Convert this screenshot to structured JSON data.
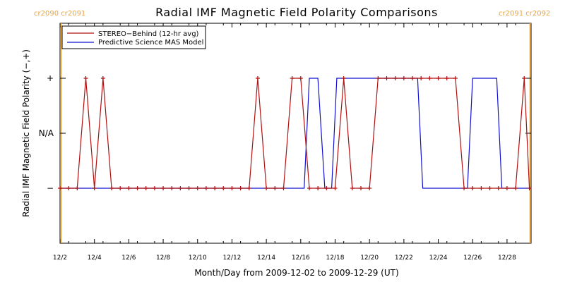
{
  "chart_data": {
    "type": "line",
    "title": "Radial IMF Magnetic Field Polarity Comparisons",
    "xlabel": "Month/Day from 2009-12-02 to 2009-12-29 (UT)",
    "ylabel": "Radial IMF Magnetic Field Polarity (−,+)",
    "xlim": [
      0,
      27.4
    ],
    "ylim": [
      -1.0,
      1.0
    ],
    "x_ticks": [
      {
        "x": 0,
        "label": "12/2"
      },
      {
        "x": 2,
        "label": "12/4"
      },
      {
        "x": 4,
        "label": "12/6"
      },
      {
        "x": 6,
        "label": "12/8"
      },
      {
        "x": 8,
        "label": "12/10"
      },
      {
        "x": 10,
        "label": "12/12"
      },
      {
        "x": 12,
        "label": "12/14"
      },
      {
        "x": 14,
        "label": "12/16"
      },
      {
        "x": 16,
        "label": "12/18"
      },
      {
        "x": 18,
        "label": "12/20"
      },
      {
        "x": 20,
        "label": "12/22"
      },
      {
        "x": 22,
        "label": "12/24"
      },
      {
        "x": 24,
        "label": "12/26"
      },
      {
        "x": 26,
        "label": "12/28"
      }
    ],
    "y_ticks": [
      {
        "y": 0.5,
        "label": "+"
      },
      {
        "y": 0.0,
        "label": "N/A"
      },
      {
        "y": -0.5,
        "label": "−"
      }
    ],
    "carrington_markers": [
      {
        "x": 0.05,
        "left_label": "cr2090",
        "right_label": "cr2091"
      },
      {
        "x": 27.35,
        "left_label": "cr2091",
        "right_label": "cr2092"
      }
    ],
    "legend_position": "top-left",
    "series": [
      {
        "name": "STEREO−Behind (12-hr avg)",
        "color": "#b01010",
        "markers": true,
        "x": [
          0,
          0.5,
          1.0,
          1.5,
          2.0,
          2.5,
          3.0,
          3.5,
          4.0,
          4.5,
          5.0,
          5.5,
          6.0,
          6.5,
          7.0,
          7.5,
          8.0,
          8.5,
          9.0,
          9.5,
          10.0,
          10.5,
          11.0,
          11.5,
          12.0,
          12.5,
          13.0,
          13.5,
          14.0,
          14.5,
          15.0,
          15.5,
          16.0,
          16.5,
          17.0,
          17.5,
          18.0,
          18.5,
          19.0,
          19.5,
          20.0,
          20.5,
          21.0,
          21.5,
          22.0,
          22.5,
          23.0,
          23.5,
          24.0,
          24.5,
          25.0,
          25.5,
          26.0,
          26.5,
          27.0,
          27.3
        ],
        "y": [
          -0.5,
          -0.5,
          -0.5,
          0.5,
          -0.5,
          0.5,
          -0.5,
          -0.5,
          -0.5,
          -0.5,
          -0.5,
          -0.5,
          -0.5,
          -0.5,
          -0.5,
          -0.5,
          -0.5,
          -0.5,
          -0.5,
          -0.5,
          -0.5,
          -0.5,
          -0.5,
          0.5,
          -0.5,
          -0.5,
          -0.5,
          0.5,
          0.5,
          -0.5,
          -0.5,
          -0.5,
          -0.5,
          0.5,
          -0.5,
          -0.5,
          -0.5,
          0.5,
          0.5,
          0.5,
          0.5,
          0.5,
          0.5,
          0.5,
          0.5,
          0.5,
          0.5,
          -0.5,
          -0.5,
          -0.5,
          -0.5,
          -0.5,
          -0.5,
          -0.5,
          0.5,
          -0.5
        ]
      },
      {
        "name": "Predictive Science MAS Model",
        "color": "#1010d0",
        "markers": false,
        "x": [
          0,
          14.2,
          14.5,
          15.0,
          15.4,
          15.8,
          16.1,
          16.5,
          20.8,
          21.1,
          23.7,
          24.0,
          25.4,
          25.7,
          27.4
        ],
        "y": [
          -0.5,
          -0.5,
          0.5,
          0.5,
          -0.5,
          -0.5,
          0.5,
          0.5,
          0.5,
          -0.5,
          -0.5,
          0.5,
          0.5,
          -0.5,
          -0.5
        ]
      }
    ]
  }
}
